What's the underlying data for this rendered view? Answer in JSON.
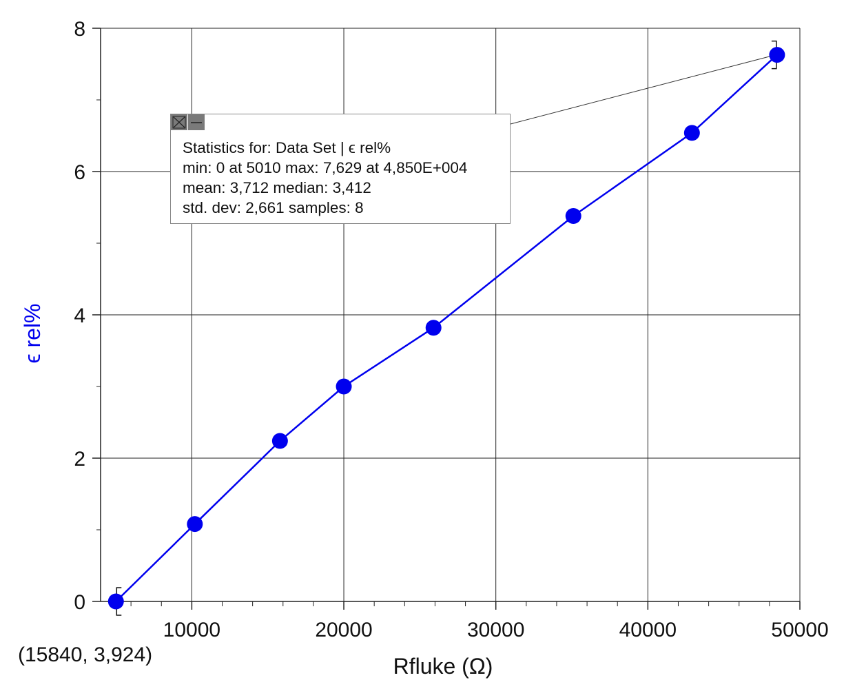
{
  "chart_data": {
    "type": "line",
    "xlabel": "Rfluke (Ω)",
    "ylabel": "ϵ rel%",
    "xlim": [
      4000,
      50000
    ],
    "ylim": [
      0,
      8
    ],
    "x_ticks": [
      10000,
      20000,
      30000,
      40000,
      50000
    ],
    "y_ticks": [
      0,
      2,
      4,
      6,
      8
    ],
    "grid": true,
    "series": [
      {
        "color": "#0000ee",
        "marker": "circle",
        "x": [
          5010,
          10200,
          15800,
          20000,
          25900,
          35100,
          42900,
          48500
        ],
        "y": [
          0,
          1.08,
          2.24,
          3.0,
          3.82,
          5.38,
          6.54,
          7.629
        ]
      }
    ]
  },
  "stats": {
    "lines": [
      "Statistics for: Data Set | ϵ rel%",
      "min: 0 at 5010 max: 7,629 at 4,850E+004",
      "mean: 3,712 median: 3,412",
      "std. dev: 2,661 samples: 8"
    ]
  },
  "coord_readout": "(15840, 3,924)",
  "icons": {
    "close": "close-icon",
    "minimize": "minimize-icon"
  }
}
